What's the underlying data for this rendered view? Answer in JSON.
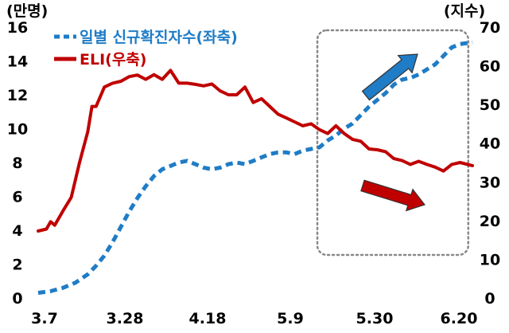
{
  "chart_data": {
    "type": "line",
    "y_left_unit": "(만명)",
    "y_right_unit": "(지수)",
    "x_ticks": [
      "3.7",
      "3.28",
      "4.18",
      "5.9",
      "5.30",
      "6.20"
    ],
    "y_left_ticks": [
      "0",
      "2",
      "4",
      "6",
      "8",
      "10",
      "12",
      "14",
      "16"
    ],
    "y_right_ticks": [
      "0",
      "10",
      "20",
      "30",
      "40",
      "50",
      "60",
      "70"
    ],
    "y_left_range": [
      0,
      16
    ],
    "y_right_range": [
      0,
      70
    ],
    "x_range_days": [
      0,
      105
    ],
    "grid": false,
    "legend_position": "top-left",
    "colors": {
      "cases": "#1f7cc6",
      "eli": "#c00000",
      "box": "#888888"
    },
    "series": [
      {
        "name": "일별 신규확진자수(좌축)",
        "axis": "left",
        "style": "dashed",
        "x": [
          0,
          3,
          6,
          9,
          12,
          14,
          16,
          18,
          20,
          22,
          24,
          26,
          28,
          30,
          32,
          34,
          36,
          38,
          40,
          42,
          44,
          46,
          48,
          50,
          52,
          54,
          56,
          58,
          60,
          62,
          64,
          66,
          68,
          70,
          72,
          74,
          76,
          78,
          80,
          82,
          84,
          86,
          88,
          90,
          92,
          94,
          96,
          98,
          100,
          102,
          105
        ],
        "y": [
          0.3,
          0.4,
          0.6,
          0.9,
          1.4,
          1.9,
          2.5,
          3.3,
          4.2,
          5.1,
          5.9,
          6.6,
          7.2,
          7.6,
          7.8,
          8.0,
          8.1,
          7.9,
          7.7,
          7.6,
          7.7,
          7.9,
          8.0,
          7.9,
          8.1,
          8.3,
          8.5,
          8.6,
          8.6,
          8.5,
          8.7,
          8.8,
          8.9,
          9.3,
          9.6,
          10.0,
          10.3,
          10.8,
          11.3,
          11.7,
          12.1,
          12.6,
          12.9,
          13.0,
          13.2,
          13.5,
          13.8,
          14.3,
          14.8,
          15.0,
          15.1
        ]
      },
      {
        "name": "ELI(우축)",
        "axis": "right",
        "style": "solid",
        "x": [
          0,
          2,
          3,
          4,
          6,
          8,
          10,
          12,
          13,
          14,
          16,
          18,
          20,
          22,
          24,
          26,
          28,
          30,
          32,
          34,
          36,
          38,
          40,
          42,
          44,
          46,
          48,
          50,
          52,
          54,
          56,
          58,
          60,
          62,
          64,
          66,
          68,
          70,
          72,
          74,
          76,
          78,
          80,
          82,
          84,
          86,
          88,
          90,
          92,
          94,
          96,
          98,
          100,
          102,
          105
        ],
        "y": [
          17.3,
          17.8,
          19.7,
          18.8,
          22.5,
          26,
          35,
          43,
          49.5,
          49.5,
          54.5,
          55.5,
          56,
          57.2,
          57.6,
          56.5,
          57.7,
          56.5,
          58.8,
          55.5,
          55.5,
          55.2,
          54.8,
          55.3,
          53.5,
          52.5,
          52.5,
          54.5,
          50.5,
          51.5,
          49.5,
          47.5,
          46.5,
          45.5,
          44.5,
          45,
          43.5,
          42.5,
          44.5,
          42.5,
          41,
          40.5,
          38.5,
          38.3,
          37.8,
          36,
          35.5,
          34.5,
          35.3,
          34.5,
          33.8,
          32.8,
          34.5,
          35,
          34.2
        ]
      }
    ]
  },
  "legend": {
    "cases_label": "일별 신규확진자수(좌축)",
    "eli_label": "ELI(우축)"
  }
}
